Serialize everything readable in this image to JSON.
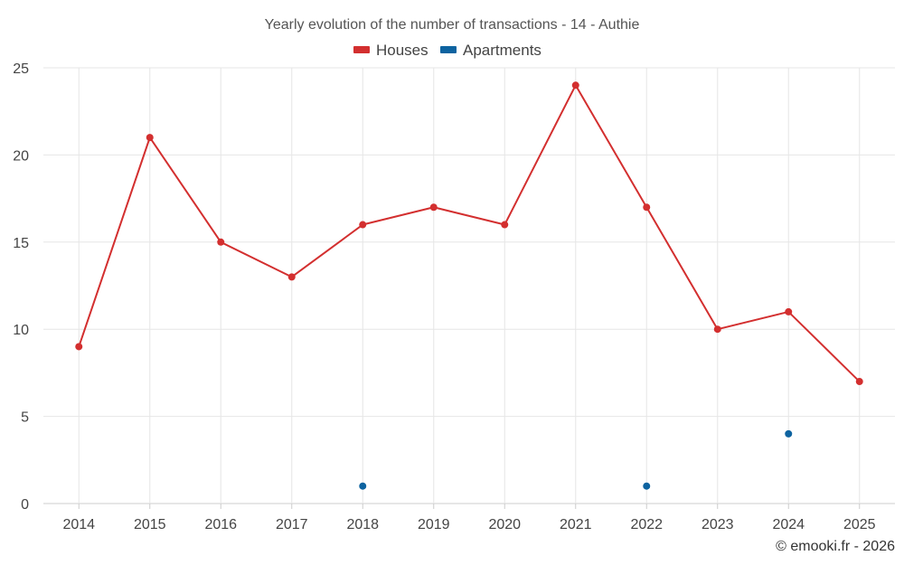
{
  "chart_data": {
    "type": "line",
    "title": "Yearly evolution of the number of transactions - 14 - Authie",
    "categories": [
      "2014",
      "2015",
      "2016",
      "2017",
      "2018",
      "2019",
      "2020",
      "2021",
      "2022",
      "2023",
      "2024",
      "2025"
    ],
    "series": [
      {
        "name": "Houses",
        "color": "#d32f2f",
        "values": [
          9,
          21,
          15,
          13,
          16,
          17,
          16,
          24,
          17,
          10,
          11,
          7
        ]
      },
      {
        "name": "Apartments",
        "color": "#0d63a0",
        "values": [
          null,
          null,
          null,
          null,
          1,
          null,
          null,
          null,
          1,
          null,
          4,
          null
        ]
      }
    ],
    "ylim": [
      0,
      25
    ],
    "yticks": [
      0,
      5,
      10,
      15,
      20,
      25
    ],
    "xlabel": "",
    "ylabel": "",
    "grid": true,
    "legend": "top-center"
  },
  "credit": "© emooki.fr - 2026"
}
